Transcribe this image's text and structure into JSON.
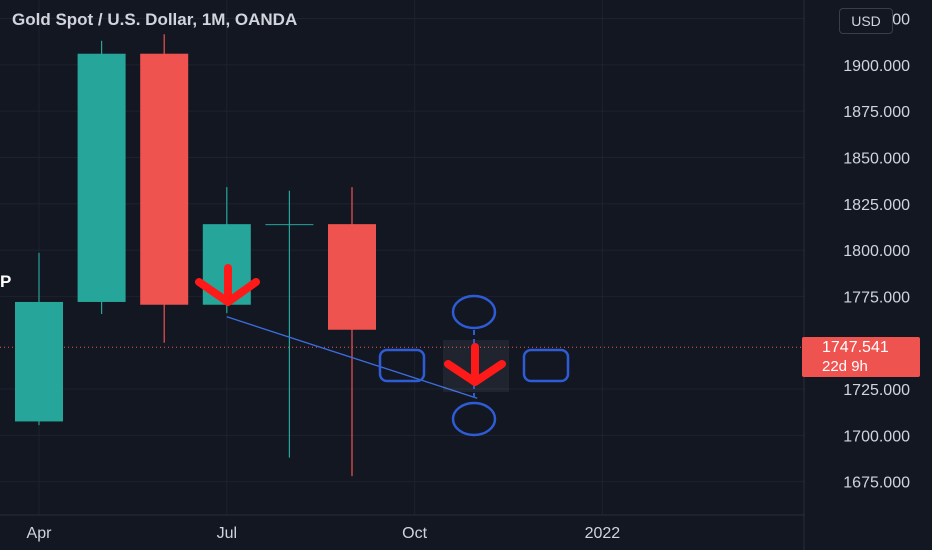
{
  "header": {
    "title": "Gold Spot / U.S. Dollar, 1M, OANDA",
    "side_label": "P"
  },
  "currency_label": "USD",
  "last_price": {
    "value": "1747.541",
    "countdown": "22d 9h"
  },
  "colors": {
    "background": "#131722",
    "up": "#26a69a",
    "down": "#ef5350",
    "grid": "#1e222d",
    "axis_text": "#d1d4dc",
    "annotation": "#2e5cd6",
    "arrow": "#ff1a1a",
    "trendline": "#3d6ee0"
  },
  "chart_data": {
    "type": "candlestick",
    "title": "Gold Spot / U.S. Dollar, 1M, OANDA",
    "x_tick_labels": [
      "Apr",
      "Jul",
      "Oct",
      "2022"
    ],
    "y_tick_labels": [
      "1925.000",
      "1900.000",
      "1875.000",
      "1850.000",
      "1825.000",
      "1800.000",
      "1775.000",
      "1725.000",
      "1700.000",
      "1675.000"
    ],
    "ylim": [
      1657,
      1935
    ],
    "grid": true,
    "candles": [
      {
        "month": "2021-04",
        "open": 1707.5,
        "high": 1798.5,
        "low": 1705.5,
        "close": 1772
      },
      {
        "month": "2021-05",
        "open": 1772,
        "high": 1913,
        "low": 1765.5,
        "close": 1906
      },
      {
        "month": "2021-06",
        "open": 1906,
        "high": 1916.5,
        "low": 1750,
        "close": 1770.5
      },
      {
        "month": "2021-07",
        "open": 1770.5,
        "high": 1834,
        "low": 1766,
        "close": 1814
      },
      {
        "month": "2021-08",
        "open": 1814,
        "high": 1832,
        "low": 1688,
        "close": 1814
      },
      {
        "month": "2021-09",
        "open": 1814,
        "high": 1834,
        "low": 1678,
        "close": 1757
      }
    ],
    "trendline": {
      "from": {
        "month": "2021-07",
        "price": 1764
      },
      "to": {
        "month": "2021-11",
        "price": 1720
      }
    },
    "last_price": 1747.541
  }
}
